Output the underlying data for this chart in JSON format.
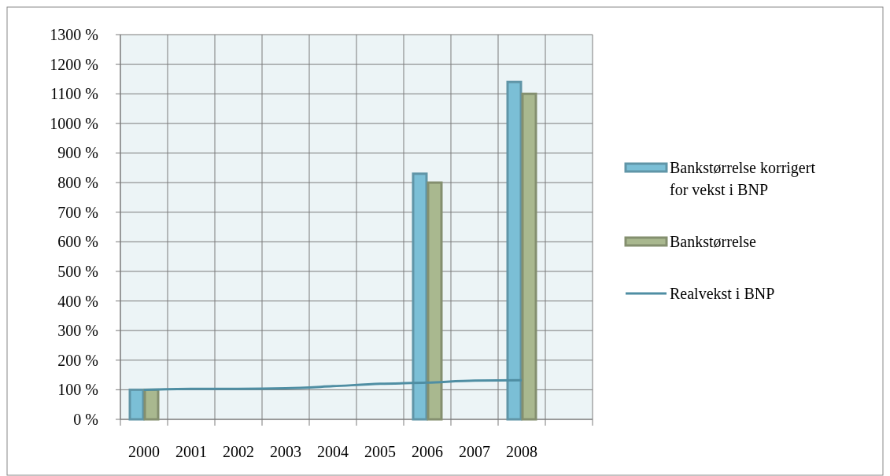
{
  "chart_data": {
    "type": "bar",
    "categories": [
      "2000",
      "2001",
      "2002",
      "2003",
      "2004",
      "2005",
      "2006",
      "2007",
      "2008",
      null
    ],
    "series": [
      {
        "name": "Bankstørrelse korrigert for vekst i BNP",
        "color": "#7bbfd6",
        "values": [
          100,
          null,
          null,
          null,
          null,
          null,
          830,
          null,
          1140,
          null
        ]
      },
      {
        "name": "Bankstørrelse",
        "color": "#a9b88f",
        "values": [
          100,
          null,
          null,
          null,
          null,
          null,
          800,
          null,
          1100,
          null
        ]
      },
      {
        "name": "Realvekst i BNP",
        "type": "line",
        "color": "#4f8ea3",
        "values": [
          100,
          103,
          103,
          105,
          112,
          120,
          124,
          131,
          132,
          null
        ]
      }
    ],
    "ylim": [
      0,
      1300
    ],
    "yticks": [
      {
        "value": 0,
        "label": "0 %"
      },
      {
        "value": 100,
        "label": "100 %"
      },
      {
        "value": 200,
        "label": "200 %"
      },
      {
        "value": 300,
        "label": "300 %"
      },
      {
        "value": 400,
        "label": "400 %"
      },
      {
        "value": 500,
        "label": "500 %"
      },
      {
        "value": 600,
        "label": "600 %"
      },
      {
        "value": 700,
        "label": "700 %"
      },
      {
        "value": 800,
        "label": "800 %"
      },
      {
        "value": 900,
        "label": "900 %"
      },
      {
        "value": 1000,
        "label": "1000 %"
      },
      {
        "value": 1100,
        "label": "1100 %"
      },
      {
        "value": 1200,
        "label": "1200 %"
      },
      {
        "value": 1300,
        "label": "1300 %"
      }
    ],
    "grid": true,
    "legend": "right",
    "marker": "none",
    "line_style": "solid"
  }
}
